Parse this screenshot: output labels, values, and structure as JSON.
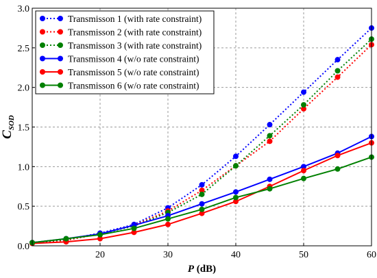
{
  "chart_data": {
    "type": "line",
    "title": "",
    "xlabel": {
      "italic": "P",
      "rest": " (dB)"
    },
    "ylabel": {
      "italic": "C",
      "sub": "SOD"
    },
    "xlim": [
      10,
      60
    ],
    "ylim": [
      0,
      3
    ],
    "xticks": [
      20,
      30,
      40,
      50,
      60
    ],
    "yticks": [
      0.0,
      0.5,
      1.0,
      1.5,
      2.0,
      2.5,
      3.0
    ],
    "ytick_labels": [
      "0.0",
      "0.5",
      "1.0",
      "1.5",
      "2.0",
      "2.5",
      "3.0"
    ],
    "grid": true,
    "legend_position": "top-left",
    "series": [
      {
        "name": "Transmisson 1 (with rate constraint)",
        "color": "#0000ff",
        "style": "dotted",
        "x": [
          10,
          15,
          20,
          25,
          30,
          35,
          40,
          45,
          50,
          55,
          60
        ],
        "y": [
          0.04,
          0.08,
          0.16,
          0.27,
          0.48,
          0.77,
          1.13,
          1.53,
          1.94,
          2.35,
          2.75
        ]
      },
      {
        "name": "Transmisson 2 (with rate constraint)",
        "color": "#ff0000",
        "style": "dotted",
        "x": [
          10,
          15,
          20,
          25,
          30,
          35,
          40,
          45,
          50,
          55,
          60
        ],
        "y": [
          0.04,
          0.07,
          0.15,
          0.26,
          0.44,
          0.7,
          1.01,
          1.32,
          1.73,
          2.13,
          2.54
        ]
      },
      {
        "name": "Transmisson 3 (with rate constraint)",
        "color": "#008000",
        "style": "dotted",
        "x": [
          10,
          15,
          20,
          25,
          30,
          35,
          40,
          45,
          50,
          55,
          60
        ],
        "y": [
          0.04,
          0.08,
          0.15,
          0.25,
          0.42,
          0.65,
          1.01,
          1.39,
          1.78,
          2.21,
          2.61
        ]
      },
      {
        "name": "Transmisson 4 (w/o rate constraint)",
        "color": "#0000ff",
        "style": "solid",
        "x": [
          10,
          15,
          20,
          25,
          30,
          35,
          40,
          45,
          50,
          55,
          60
        ],
        "y": [
          0.04,
          0.09,
          0.15,
          0.26,
          0.38,
          0.53,
          0.68,
          0.84,
          1.0,
          1.17,
          1.38
        ]
      },
      {
        "name": "Transmisson 5 (w/o rate constraint)",
        "color": "#ff0000",
        "style": "solid",
        "x": [
          10,
          15,
          20,
          25,
          30,
          35,
          40,
          45,
          50,
          55,
          60
        ],
        "y": [
          0.03,
          0.05,
          0.09,
          0.17,
          0.27,
          0.41,
          0.56,
          0.75,
          0.95,
          1.14,
          1.3
        ]
      },
      {
        "name": "Transmisson 6 (w/o rate constraint)",
        "color": "#008000",
        "style": "solid",
        "x": [
          10,
          15,
          20,
          25,
          30,
          35,
          40,
          45,
          50,
          55,
          60
        ],
        "y": [
          0.04,
          0.09,
          0.14,
          0.22,
          0.34,
          0.46,
          0.61,
          0.72,
          0.85,
          0.97,
          1.12
        ]
      }
    ]
  }
}
